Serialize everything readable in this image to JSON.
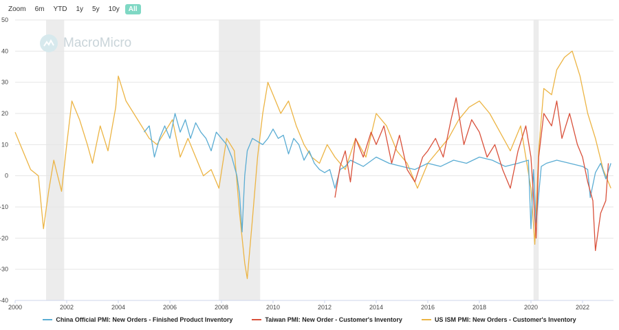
{
  "zoom": {
    "label": "Zoom",
    "options": [
      "6m",
      "YTD",
      "1y",
      "5y",
      "10y",
      "All"
    ],
    "active": "All"
  },
  "watermark": "MacroMicro",
  "colors": {
    "china": "#5aacd3",
    "taiwan": "#d9503a",
    "us": "#ecb443",
    "recession": "#ececec",
    "grid": "#e6e6e6"
  },
  "chart_data": {
    "type": "line",
    "title": "",
    "xlabel": "",
    "ylabel": "",
    "xlim": [
      2000,
      2023.2
    ],
    "ylim": [
      -40,
      50
    ],
    "y_ticks": [
      50,
      40,
      30,
      20,
      10,
      0,
      -10,
      -20,
      -30,
      -40
    ],
    "x_ticks": [
      "2000",
      "2002",
      "2004",
      "2006",
      "2008",
      "2010",
      "2012",
      "2014",
      "2016",
      "2018",
      "2020",
      "2022"
    ],
    "recession_bands": [
      [
        2001.2,
        2001.9
      ],
      [
        2007.9,
        2009.5
      ],
      [
        2020.1,
        2020.3
      ]
    ],
    "series": [
      {
        "name": "China Official PMI: New Orders - Finished Product Inventory",
        "color": "#5aacd3",
        "x": [
          2005.0,
          2005.2,
          2005.4,
          2005.6,
          2005.8,
          2006.0,
          2006.2,
          2006.4,
          2006.6,
          2006.8,
          2007.0,
          2007.2,
          2007.4,
          2007.6,
          2007.8,
          2008.0,
          2008.2,
          2008.4,
          2008.6,
          2008.7,
          2008.8,
          2008.9,
          2009.0,
          2009.2,
          2009.4,
          2009.6,
          2009.8,
          2010.0,
          2010.2,
          2010.4,
          2010.6,
          2010.8,
          2011.0,
          2011.2,
          2011.4,
          2011.6,
          2011.8,
          2012.0,
          2012.2,
          2012.4,
          2012.6,
          2012.8,
          2013.0,
          2013.5,
          2014.0,
          2014.5,
          2015.0,
          2015.5,
          2016.0,
          2016.5,
          2017.0,
          2017.5,
          2018.0,
          2018.5,
          2019.0,
          2019.5,
          2019.9,
          2020.0,
          2020.1,
          2020.2,
          2020.4,
          2020.6,
          2021.0,
          2021.5,
          2022.0,
          2022.2,
          2022.3,
          2022.5,
          2022.7,
          2022.9,
          2023.1
        ],
        "values": [
          14,
          16,
          6,
          12,
          16,
          12,
          20,
          14,
          18,
          12,
          17,
          14,
          12,
          8,
          14,
          12,
          10,
          6,
          0,
          -6,
          -18,
          0,
          8,
          12,
          11,
          10,
          12,
          15,
          12,
          13,
          7,
          12,
          10,
          5,
          8,
          4,
          2,
          1,
          2,
          -4,
          2,
          3,
          5,
          3,
          6,
          4,
          3,
          2,
          4,
          3,
          5,
          4,
          6,
          5,
          3,
          4,
          5,
          -17,
          2,
          -15,
          3,
          4,
          5,
          4,
          3,
          2,
          -7,
          1,
          4,
          -1,
          4
        ]
      },
      {
        "name": "Taiwan PMI: New Order - Customer's Inventory",
        "color": "#d9503a",
        "x": [
          2012.4,
          2012.6,
          2012.8,
          2013.0,
          2013.2,
          2013.5,
          2013.8,
          2014.0,
          2014.3,
          2014.6,
          2014.9,
          2015.2,
          2015.5,
          2015.8,
          2016.0,
          2016.3,
          2016.6,
          2016.9,
          2017.1,
          2017.4,
          2017.7,
          2018.0,
          2018.3,
          2018.6,
          2018.9,
          2019.2,
          2019.5,
          2019.8,
          2020.0,
          2020.2,
          2020.3,
          2020.5,
          2020.8,
          2021.0,
          2021.2,
          2021.5,
          2021.8,
          2022.0,
          2022.2,
          2022.4,
          2022.5,
          2022.7,
          2022.9,
          2023.0
        ],
        "values": [
          -7,
          3,
          8,
          -2,
          12,
          6,
          14,
          10,
          16,
          4,
          13,
          2,
          -2,
          6,
          8,
          12,
          6,
          18,
          25,
          10,
          18,
          14,
          6,
          10,
          2,
          -4,
          8,
          16,
          6,
          -20,
          6,
          20,
          16,
          24,
          12,
          20,
          10,
          6,
          -2,
          -8,
          -24,
          -12,
          -8,
          4
        ]
      },
      {
        "name": "US ISM PMI: New Orders - Customer's Inventory",
        "color": "#ecb443",
        "x": [
          2000.0,
          2000.3,
          2000.6,
          2000.9,
          2001.1,
          2001.3,
          2001.5,
          2001.8,
          2002.0,
          2002.2,
          2002.5,
          2002.8,
          2003.0,
          2003.3,
          2003.6,
          2003.9,
          2004.0,
          2004.3,
          2004.6,
          2004.9,
          2005.2,
          2005.5,
          2005.8,
          2006.1,
          2006.4,
          2006.7,
          2007.0,
          2007.3,
          2007.6,
          2007.9,
          2008.2,
          2008.5,
          2008.7,
          2008.9,
          2009.0,
          2009.2,
          2009.4,
          2009.6,
          2009.8,
          2010.0,
          2010.3,
          2010.6,
          2010.9,
          2011.2,
          2011.5,
          2011.8,
          2012.1,
          2012.4,
          2012.8,
          2013.2,
          2013.6,
          2014.0,
          2014.4,
          2014.8,
          2015.2,
          2015.6,
          2016.0,
          2016.4,
          2016.8,
          2017.2,
          2017.6,
          2018.0,
          2018.4,
          2018.8,
          2019.2,
          2019.6,
          2020.0,
          2020.15,
          2020.3,
          2020.5,
          2020.8,
          2021.0,
          2021.3,
          2021.6,
          2021.9,
          2022.2,
          2022.5,
          2022.8,
          2023.1
        ],
        "values": [
          14,
          8,
          2,
          0,
          -17,
          -5,
          5,
          -5,
          10,
          24,
          18,
          10,
          4,
          16,
          8,
          22,
          32,
          24,
          20,
          16,
          12,
          10,
          14,
          18,
          6,
          12,
          6,
          0,
          2,
          -4,
          12,
          8,
          -12,
          -28,
          -33,
          -14,
          6,
          20,
          30,
          26,
          20,
          24,
          16,
          10,
          6,
          4,
          10,
          6,
          2,
          12,
          6,
          20,
          16,
          8,
          4,
          -4,
          4,
          8,
          12,
          18,
          22,
          24,
          20,
          14,
          8,
          16,
          -4,
          -22,
          8,
          28,
          26,
          34,
          38,
          40,
          32,
          20,
          12,
          2,
          -4
        ]
      }
    ]
  }
}
